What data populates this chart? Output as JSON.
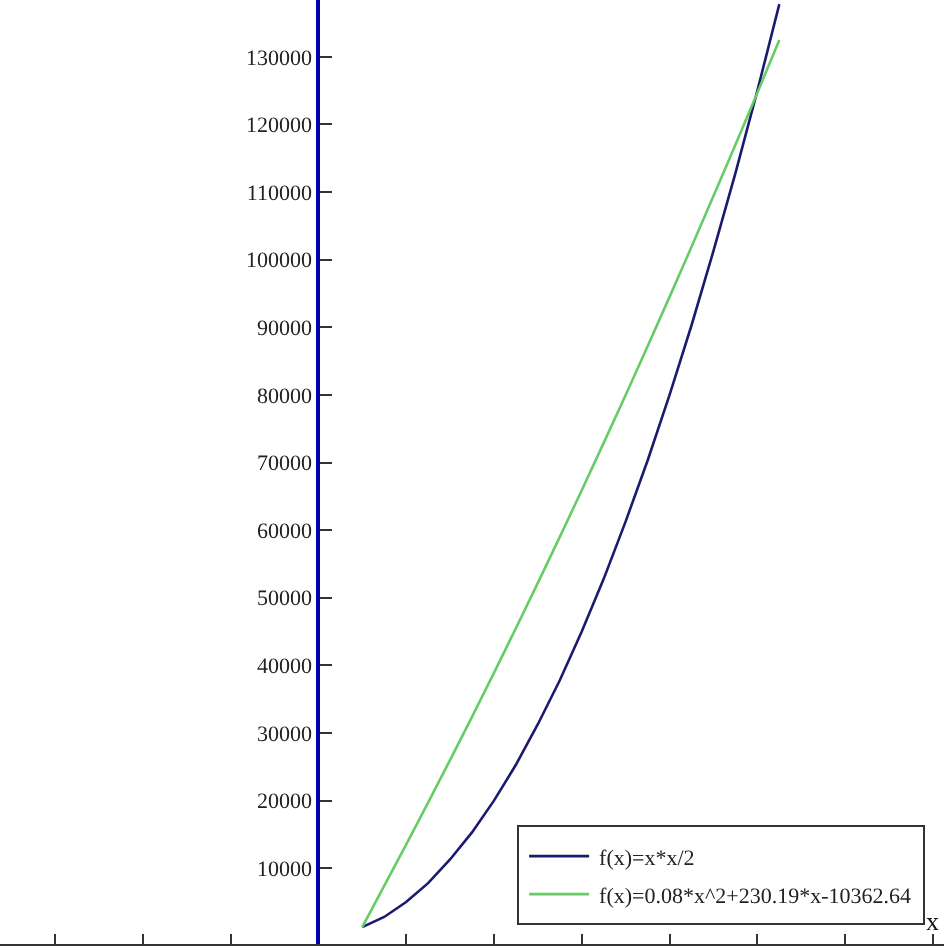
{
  "chart_data": {
    "type": "line",
    "xlabel": "x",
    "categories": [
      null,
      null,
      null,
      null,
      null,
      null,
      null,
      null,
      null,
      null,
      null,
      null,
      null,
      null,
      null,
      null,
      null,
      null,
      null,
      null,
      null,
      null,
      null,
      null,
      null,
      null,
      null,
      null,
      null,
      null,
      null,
      null,
      null,
      null,
      null,
      null,
      null,
      null,
      null,
      null,
      null,
      null,
      null
    ],
    "ylim": [
      -1200,
      138400
    ],
    "yticks": [
      10000,
      20000,
      30000,
      40000,
      50000,
      60000,
      70000,
      80000,
      90000,
      100000,
      110000,
      120000,
      130000
    ],
    "legend": "bottom right",
    "marker": "none",
    "line_style": "solid",
    "series": [
      {
        "name": "f(x)=x*x/2",
        "color": "#1a1a6e",
        "values": [
          null,
          null,
          null,
          null,
          null,
          null,
          null,
          null,
          null,
          null,
          null,
          null,
          null,
          null,
          null,
          null,
          1300,
          2800,
          5000,
          7800,
          11300,
          15300,
          20000,
          25300,
          31300,
          37800,
          45000,
          52800,
          61300,
          70300,
          80000,
          90300,
          101300,
          112800,
          125000,
          137800,
          null,
          null,
          null,
          null,
          null,
          null,
          null
        ]
      },
      {
        "name": "f(x)=0.08*x^2+230.19*x-10362.64",
        "color": "#66cc66",
        "values": [
          null,
          null,
          null,
          null,
          null,
          null,
          null,
          null,
          null,
          null,
          null,
          null,
          null,
          null,
          null,
          null,
          1300,
          7400,
          13500,
          19700,
          26000,
          32400,
          38900,
          45500,
          52200,
          59000,
          65900,
          72900,
          80000,
          87200,
          94500,
          101900,
          109400,
          117000,
          124700,
          132500,
          null,
          null,
          null,
          null,
          null,
          null,
          null
        ]
      }
    ]
  }
}
